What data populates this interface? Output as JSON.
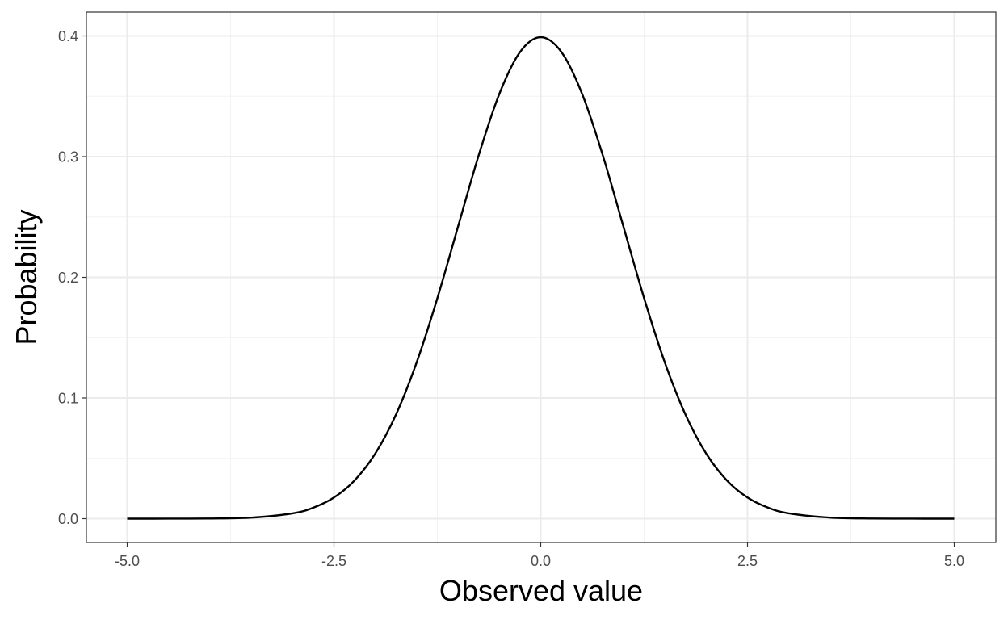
{
  "chart_data": {
    "type": "line",
    "title": "",
    "xlabel": "Observed value",
    "ylabel": "Probability",
    "xlim": [
      -5.0,
      5.0
    ],
    "ylim": [
      0.0,
      0.4
    ],
    "x_ticks": [
      -5.0,
      -2.5,
      0.0,
      2.5,
      5.0
    ],
    "x_tick_labels": [
      "-5.0",
      "-2.5",
      "0.0",
      "2.5",
      "5.0"
    ],
    "y_ticks": [
      0.0,
      0.1,
      0.2,
      0.3,
      0.4
    ],
    "y_tick_labels": [
      "0.0",
      "0.1",
      "0.2",
      "0.3",
      "0.4"
    ],
    "grid": true,
    "legend": "none",
    "series": [
      {
        "color": "#000000",
        "x": [
          -5.0,
          -4.5,
          -4.0,
          -3.5,
          -3.0,
          -2.75,
          -2.5,
          -2.25,
          -2.0,
          -1.75,
          -1.5,
          -1.25,
          -1.0,
          -0.75,
          -0.5,
          -0.25,
          0.0,
          0.25,
          0.5,
          0.75,
          1.0,
          1.25,
          1.5,
          1.75,
          2.0,
          2.25,
          2.5,
          2.75,
          3.0,
          3.5,
          4.0,
          4.5,
          5.0
        ],
        "y": [
          1.5e-06,
          1.6e-05,
          0.000134,
          0.000873,
          0.00443,
          0.00909,
          0.01753,
          0.03174,
          0.05399,
          0.08628,
          0.12952,
          0.18265,
          0.24197,
          0.30114,
          0.35207,
          0.38667,
          0.39894,
          0.38667,
          0.35207,
          0.30114,
          0.24197,
          0.18265,
          0.12952,
          0.08628,
          0.05399,
          0.03174,
          0.01753,
          0.00909,
          0.00443,
          0.000873,
          0.000134,
          1.6e-05,
          1.5e-06
        ]
      }
    ]
  }
}
